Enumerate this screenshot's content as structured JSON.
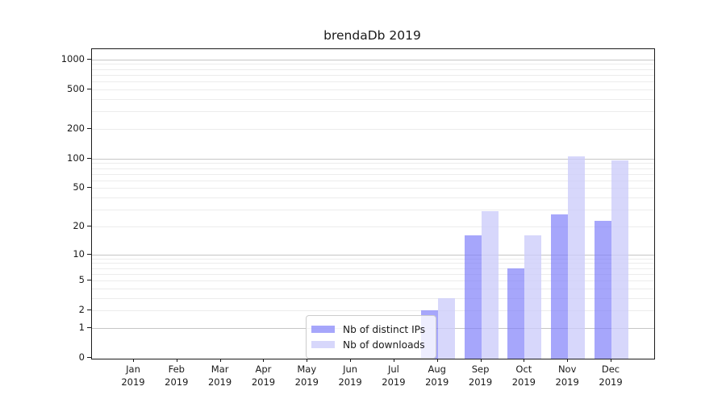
{
  "chart_data": {
    "type": "bar",
    "title": "brendaDb 2019",
    "categories": [
      "Jan",
      "Feb",
      "Mar",
      "Apr",
      "May",
      "Jun",
      "Jul",
      "Aug",
      "Sep",
      "Oct",
      "Nov",
      "Dec"
    ],
    "x_sublabel": "2019",
    "series": [
      {
        "name": "Nb of distinct IPs",
        "color": "#8080fa",
        "alpha": 0.7,
        "values": [
          0,
          0,
          0,
          0,
          0,
          0,
          0,
          2,
          16,
          7,
          27,
          23
        ]
      },
      {
        "name": "Nb of downloads",
        "color": "#ccccfa",
        "alpha": 0.78,
        "values": [
          0,
          0,
          0,
          0,
          0,
          0,
          0,
          3,
          29,
          16,
          105,
          95
        ]
      }
    ],
    "yscale": "log1p",
    "ylim": [
      0,
      1270
    ],
    "yticks": [
      0,
      1,
      2,
      5,
      10,
      20,
      50,
      100,
      200,
      500,
      1000
    ],
    "major_grid_values": [
      1,
      10,
      100,
      1000
    ],
    "grid": "on",
    "legend_position": "lower-center",
    "colors": {
      "distinct_ips_bar": "#a8a8f8",
      "downloads_bar": "#dbdbfa",
      "major_grid": "#c6c6c6",
      "minor_grid": "#ececec",
      "axis": "#1c1c1c",
      "text": "#1a1a1a",
      "legend_border": "#cccccc"
    }
  }
}
